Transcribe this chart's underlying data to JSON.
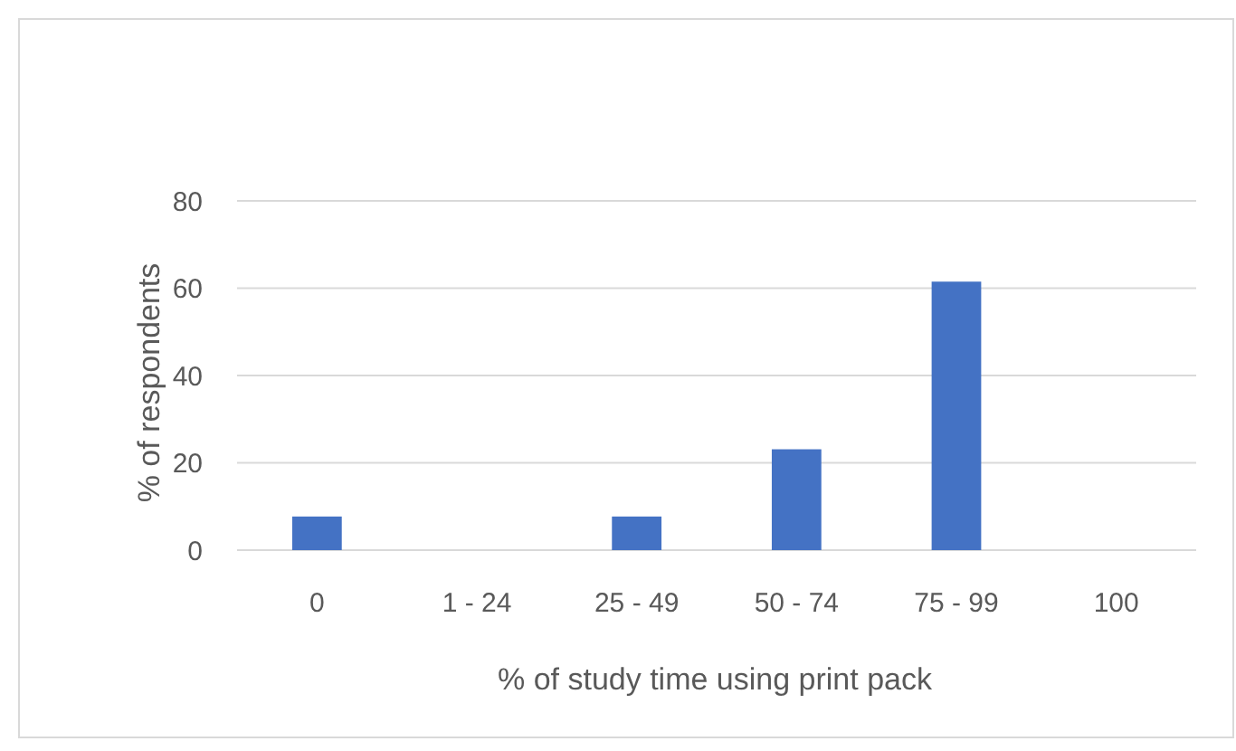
{
  "chart_data": {
    "type": "bar",
    "xlabel": "% of study time using print pack",
    "ylabel": "% of respondents",
    "categories": [
      "0",
      "1 - 24",
      "25 - 49",
      "50 - 74",
      "75 - 99",
      "100"
    ],
    "values": [
      7.7,
      0,
      7.7,
      23.1,
      61.5,
      0
    ],
    "color": "#4472c4",
    "ylim": [
      0,
      80
    ],
    "yticks": [
      0,
      20,
      40,
      60,
      80
    ],
    "grid": "y"
  }
}
